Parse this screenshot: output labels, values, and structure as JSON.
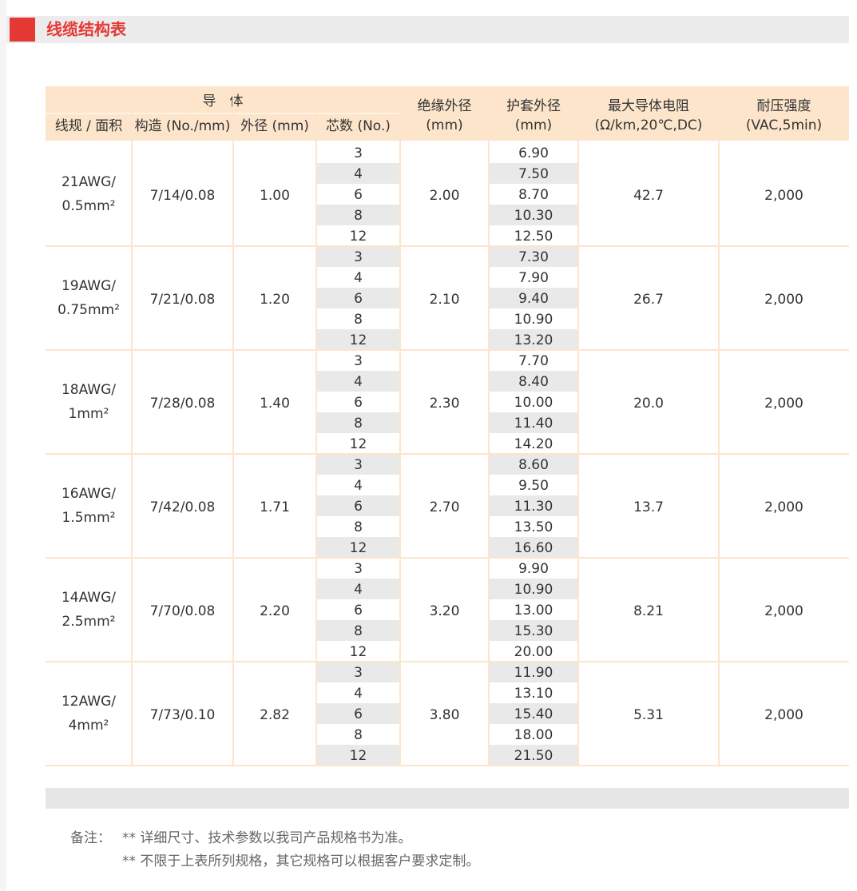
{
  "header": {
    "title": "线缆结构表"
  },
  "table": {
    "group_header": "导　体",
    "columns": [
      [
        "线规 / 面积"
      ],
      [
        "构造 (No./mm)"
      ],
      [
        "外径 (mm)"
      ],
      [
        "芯数 (No.)"
      ],
      [
        "绝缘外径",
        "(mm)"
      ],
      [
        "护套外径",
        "(mm)"
      ],
      [
        "最大导体电阻",
        "(Ω/km,20℃,DC)"
      ],
      [
        "耐压强度",
        "(VAC,5min)"
      ]
    ],
    "rows": [
      {
        "gauge": [
          "21AWG/",
          "0.5mm²"
        ],
        "structure": "7/14/0.08",
        "conductor_od": "1.00",
        "cores": [
          "3",
          "4",
          "6",
          "8",
          "12"
        ],
        "insulation_od": "2.00",
        "jacket_od": [
          "6.90",
          "7.50",
          "8.70",
          "10.30",
          "12.50"
        ],
        "resistance": "42.7",
        "voltage": "2,000"
      },
      {
        "gauge": [
          "19AWG/",
          "0.75mm²"
        ],
        "structure": "7/21/0.08",
        "conductor_od": "1.20",
        "cores": [
          "3",
          "4",
          "6",
          "8",
          "12"
        ],
        "insulation_od": "2.10",
        "jacket_od": [
          "7.30",
          "7.90",
          "9.40",
          "10.90",
          "13.20"
        ],
        "resistance": "26.7",
        "voltage": "2,000"
      },
      {
        "gauge": [
          "18AWG/",
          "1mm²"
        ],
        "structure": "7/28/0.08",
        "conductor_od": "1.40",
        "cores": [
          "3",
          "4",
          "6",
          "8",
          "12"
        ],
        "insulation_od": "2.30",
        "jacket_od": [
          "7.70",
          "8.40",
          "10.00",
          "11.40",
          "14.20"
        ],
        "resistance": "20.0",
        "voltage": "2,000"
      },
      {
        "gauge": [
          "16AWG/",
          "1.5mm²"
        ],
        "structure": "7/42/0.08",
        "conductor_od": "1.71",
        "cores": [
          "3",
          "4",
          "6",
          "8",
          "12"
        ],
        "insulation_od": "2.70",
        "jacket_od": [
          "8.60",
          "9.50",
          "11.30",
          "13.50",
          "16.60"
        ],
        "resistance": "13.7",
        "voltage": "2,000"
      },
      {
        "gauge": [
          "14AWG/",
          "2.5mm²"
        ],
        "structure": "7/70/0.08",
        "conductor_od": "2.20",
        "cores": [
          "3",
          "4",
          "6",
          "8",
          "12"
        ],
        "insulation_od": "3.20",
        "jacket_od": [
          "9.90",
          "10.90",
          "13.00",
          "15.30",
          "20.00"
        ],
        "resistance": "8.21",
        "voltage": "2,000"
      },
      {
        "gauge": [
          "12AWG/",
          "4mm²"
        ],
        "structure": "7/73/0.10",
        "conductor_od": "2.82",
        "cores": [
          "3",
          "4",
          "6",
          "8",
          "12"
        ],
        "insulation_od": "3.80",
        "jacket_od": [
          "11.90",
          "13.10",
          "15.40",
          "18.00",
          "21.50"
        ],
        "resistance": "5.31",
        "voltage": "2,000"
      }
    ]
  },
  "notes": {
    "label": "备注：",
    "lines": [
      "** 详细尺寸、技术参数以我司产品规格书为准。",
      "** 不限于上表所列规格，其它规格可以根据客户要求定制。"
    ]
  }
}
